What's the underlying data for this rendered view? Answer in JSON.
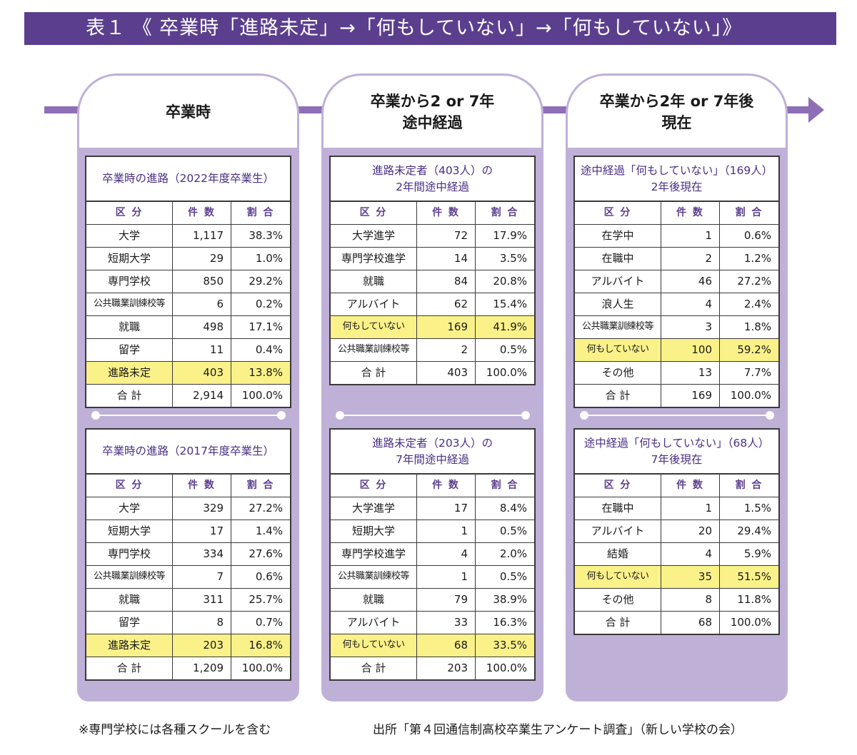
{
  "title": "表１ 《 卒業時「進路未定」→「何もしていない」→「何もしていない」》",
  "header_cols": [
    "区 分",
    "件 数",
    "割 合"
  ],
  "columns": [
    {
      "head": [
        "卒業時"
      ],
      "tables": [
        {
          "caption": [
            "卒業時の進路（2022年度卒業生）"
          ],
          "rows": [
            {
              "label": "大学",
              "count": "1,117",
              "pct": "38.3%"
            },
            {
              "label": "短期大学",
              "count": "29",
              "pct": "1.0%"
            },
            {
              "label": "専門学校",
              "count": "850",
              "pct": "29.2%"
            },
            {
              "label": "公共職業訓練校等",
              "count": "6",
              "pct": "0.2%"
            },
            {
              "label": "就職",
              "count": "498",
              "pct": "17.1%"
            },
            {
              "label": "留学",
              "count": "11",
              "pct": "0.4%"
            },
            {
              "label": "進路未定",
              "count": "403",
              "pct": "13.8%",
              "hl": true
            },
            {
              "label": "合 計",
              "count": "2,914",
              "pct": "100.0%"
            }
          ]
        },
        {
          "caption": [
            "卒業時の進路（2017年度卒業生）"
          ],
          "rows": [
            {
              "label": "大学",
              "count": "329",
              "pct": "27.2%"
            },
            {
              "label": "短期大学",
              "count": "17",
              "pct": "1.4%"
            },
            {
              "label": "専門学校",
              "count": "334",
              "pct": "27.6%"
            },
            {
              "label": "公共職業訓練校等",
              "count": "7",
              "pct": "0.6%"
            },
            {
              "label": "就職",
              "count": "311",
              "pct": "25.7%"
            },
            {
              "label": "留学",
              "count": "8",
              "pct": "0.7%"
            },
            {
              "label": "進路未定",
              "count": "203",
              "pct": "16.8%",
              "hl": true
            },
            {
              "label": "合 計",
              "count": "1,209",
              "pct": "100.0%"
            }
          ]
        }
      ]
    },
    {
      "head": [
        "卒業から2 or 7年",
        "途中経過"
      ],
      "tables": [
        {
          "caption": [
            "進路未定者（403人）の",
            "2年間途中経過"
          ],
          "rows": [
            {
              "label": "大学進学",
              "count": "72",
              "pct": "17.9%"
            },
            {
              "label": "専門学校進学",
              "count": "14",
              "pct": "3.5%"
            },
            {
              "label": "就職",
              "count": "84",
              "pct": "20.8%"
            },
            {
              "label": "アルバイト",
              "count": "62",
              "pct": "15.4%"
            },
            {
              "label": "何もしていない",
              "count": "169",
              "pct": "41.9%",
              "hl": true
            },
            {
              "label": "公共職業訓練校等",
              "count": "2",
              "pct": "0.5%"
            },
            {
              "label": "合 計",
              "count": "403",
              "pct": "100.0%"
            }
          ]
        },
        {
          "caption": [
            "進路未定者（203人）の",
            "7年間途中経過"
          ],
          "rows": [
            {
              "label": "大学進学",
              "count": "17",
              "pct": "8.4%"
            },
            {
              "label": "短期大学",
              "count": "1",
              "pct": "0.5%"
            },
            {
              "label": "専門学校進学",
              "count": "4",
              "pct": "2.0%"
            },
            {
              "label": "公共職業訓練校等",
              "count": "1",
              "pct": "0.5%"
            },
            {
              "label": "就職",
              "count": "79",
              "pct": "38.9%"
            },
            {
              "label": "アルバイト",
              "count": "33",
              "pct": "16.3%"
            },
            {
              "label": "何もしていない",
              "count": "68",
              "pct": "33.5%",
              "hl": true
            },
            {
              "label": "合 計",
              "count": "203",
              "pct": "100.0%"
            }
          ]
        }
      ]
    },
    {
      "head": [
        "卒業から2年 or 7年後",
        "現在"
      ],
      "tables": [
        {
          "caption": [
            "途中経過「何もしていない」（169人）",
            "2年後現在"
          ],
          "rows": [
            {
              "label": "在学中",
              "count": "1",
              "pct": "0.6%"
            },
            {
              "label": "在職中",
              "count": "2",
              "pct": "1.2%"
            },
            {
              "label": "アルバイト",
              "count": "46",
              "pct": "27.2%"
            },
            {
              "label": "浪人生",
              "count": "4",
              "pct": "2.4%"
            },
            {
              "label": "公共職業訓練校等",
              "count": "3",
              "pct": "1.8%"
            },
            {
              "label": "何もしていない",
              "count": "100",
              "pct": "59.2%",
              "hl": true
            },
            {
              "label": "その他",
              "count": "13",
              "pct": "7.7%"
            },
            {
              "label": "合 計",
              "count": "169",
              "pct": "100.0%"
            }
          ]
        },
        {
          "caption": [
            "途中経過「何もしていない」（68人）",
            "7年後現在"
          ],
          "rows": [
            {
              "label": "在職中",
              "count": "1",
              "pct": "1.5%"
            },
            {
              "label": "アルバイト",
              "count": "20",
              "pct": "29.4%"
            },
            {
              "label": "結婚",
              "count": "4",
              "pct": "5.9%"
            },
            {
              "label": "何もしていない",
              "count": "35",
              "pct": "51.5%",
              "hl": true
            },
            {
              "label": "その他",
              "count": "8",
              "pct": "11.8%"
            },
            {
              "label": "合 計",
              "count": "68",
              "pct": "100.0%"
            }
          ]
        }
      ]
    }
  ],
  "footnote": "※専門学校には各種スクールを含む",
  "source": "出所「第４回通信制高校卒業生アンケート調査」（新しい学校の会）",
  "colors": {
    "title_bg": "#5b3f8e",
    "column_bg": "#bfb0d8",
    "highlight": "#faf189",
    "caption": "#4a2f86"
  }
}
